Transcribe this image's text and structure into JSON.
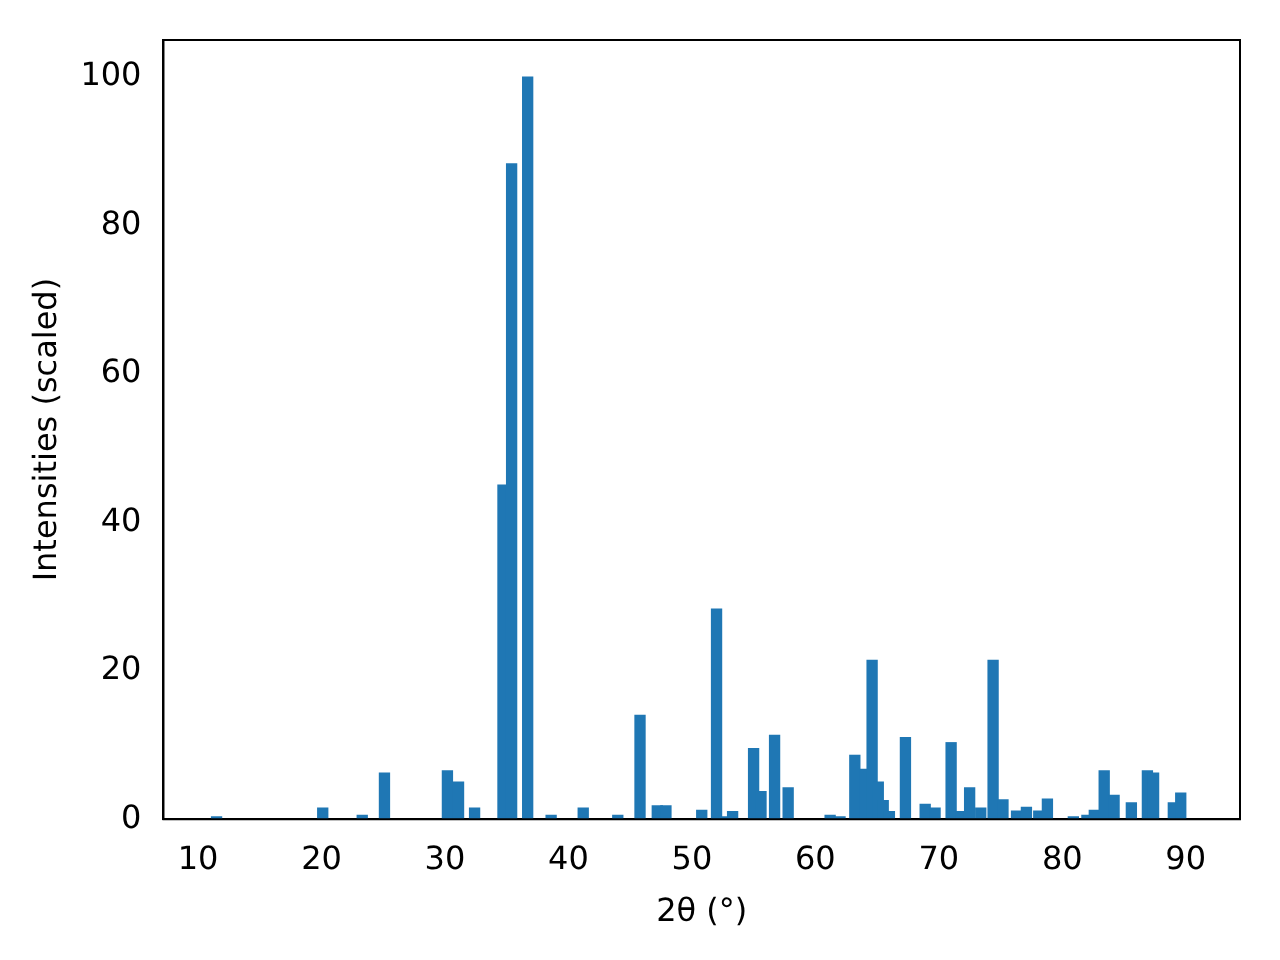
{
  "chart_data": {
    "type": "bar",
    "xlabel": "2θ (°)",
    "ylabel": "Intensities (scaled)",
    "color": "#1f77b4",
    "x": [
      11.5,
      20.1,
      23.3,
      25.1,
      30.2,
      31.1,
      32.4,
      34.7,
      35.4,
      36.7,
      38.6,
      41.2,
      44.0,
      45.8,
      47.2,
      47.9,
      50.8,
      52.0,
      52.6,
      53.3,
      55.0,
      55.6,
      56.7,
      57.8,
      61.2,
      62.0,
      63.2,
      64.0,
      64.6,
      65.1,
      65.5,
      66.0,
      66.6,
      67.3,
      68.9,
      69.7,
      71.0,
      71.8,
      72.5,
      73.4,
      74.4,
      75.2,
      76.3,
      77.1,
      78.1,
      78.8,
      80.9,
      82.0,
      82.6,
      83.4,
      84.2,
      85.6,
      86.9,
      87.4,
      89.0,
      89.6
    ],
    "values": [
      0.3,
      1.5,
      0.5,
      6.2,
      6.5,
      5.0,
      1.5,
      45,
      88.3,
      100,
      0.5,
      1.5,
      0.5,
      14,
      1.8,
      1.8,
      1.2,
      28.3,
      0.3,
      1.0,
      9.5,
      3.7,
      11.3,
      4.2,
      0.5,
      0.3,
      8.6,
      6.7,
      21.4,
      5.0,
      2.5,
      1.0,
      null,
      11.0,
      2.0,
      1.5,
      10.3,
      1.0,
      4.2,
      1.5,
      21.4,
      2.6,
      1.1,
      1.6,
      1.1,
      2.7,
      0.3,
      0.5,
      1.2,
      6.5,
      3.2,
      2.2,
      6.5,
      6.2,
      2.2,
      3.5
    ],
    "xlim": [
      7.2,
      94.4
    ],
    "ylim": [
      0,
      105
    ],
    "xticks": [
      10,
      20,
      30,
      40,
      50,
      60,
      70,
      80,
      90
    ],
    "yticks": [
      0,
      20,
      40,
      60,
      80,
      100
    ],
    "grid": false,
    "legend": false
  }
}
